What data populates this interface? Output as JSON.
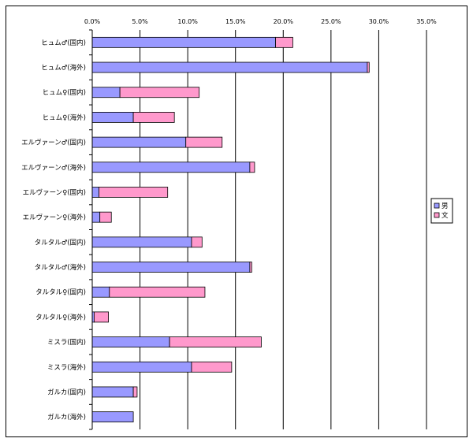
{
  "chart_data": {
    "type": "bar",
    "orientation": "horizontal",
    "stacked": true,
    "xlim": [
      0,
      35
    ],
    "x_ticks": [
      "0.0%",
      "5.0%",
      "10.0%",
      "15.0%",
      "20.0%",
      "25.0%",
      "30.0%",
      "35.0%"
    ],
    "x_tick_values": [
      0,
      5,
      10,
      15,
      20,
      25,
      30,
      35
    ],
    "grid": true,
    "legend_position": "right",
    "categories": [
      "ヒュム♂(国内)",
      "ヒュム♂(海外)",
      "ヒュム♀(国内)",
      "ヒュム♀(海外)",
      "エルヴァーン♂(国内)",
      "エルヴァーン♂(海外)",
      "エルヴァーン♀(国内)",
      "エルヴァーン♀(海外)",
      "タルタル♂(国内)",
      "タルタル♂(海外)",
      "タルタル♀(国内)",
      "タルタル♀(海外)",
      "ミスラ(国内)",
      "ミスラ(海外)",
      "ガルカ(国内)",
      "ガルカ(海外)"
    ],
    "series": [
      {
        "name": "男",
        "color": "#9999ff",
        "values": [
          19.2,
          28.8,
          2.9,
          4.3,
          9.8,
          16.5,
          0.7,
          0.8,
          10.4,
          16.5,
          1.8,
          0.2,
          8.1,
          10.4,
          4.3,
          4.3
        ]
      },
      {
        "name": "文",
        "color": "#ff99cc",
        "values": [
          1.8,
          0.2,
          8.3,
          4.3,
          3.8,
          0.5,
          7.2,
          1.2,
          1.1,
          0.2,
          10.0,
          1.5,
          9.6,
          4.2,
          0.4,
          0.0
        ]
      }
    ]
  }
}
